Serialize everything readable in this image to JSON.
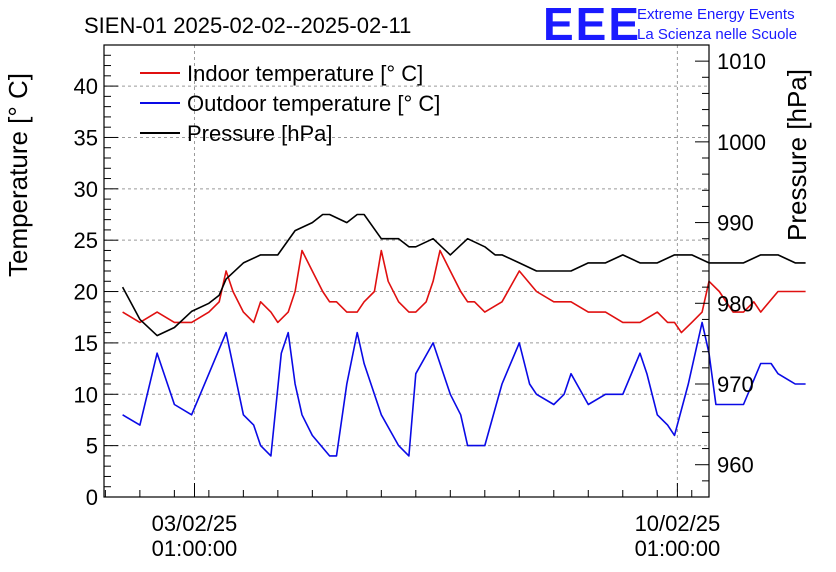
{
  "logo": {
    "mark": "EEE",
    "line1": "Extreme Energy Events",
    "line2": "La Scienza nelle Scuole",
    "color": "#1a1aff"
  },
  "chart_data": {
    "type": "line",
    "title": "SIEN-01 2025-02-02--2025-02-11",
    "ylabel_left": "Temperature [° C]",
    "ylabel_right": "Pressure [hPa]",
    "xlabel": "",
    "ylim_left": [
      0,
      44
    ],
    "ylim_right": [
      956,
      1012
    ],
    "xlim_days": [
      1.73,
      10.5
    ],
    "grid": true,
    "legend_position": "top-left",
    "yticks_left": [
      0,
      5,
      10,
      15,
      20,
      25,
      30,
      35,
      40
    ],
    "yticks_right": [
      960,
      970,
      980,
      990,
      1000,
      1010
    ],
    "xticks": [
      {
        "day": 3.0417,
        "date": "03/02/25",
        "time": "01:00:00"
      },
      {
        "day": 10.0417,
        "date": "10/02/25",
        "time": "01:00:00"
      }
    ],
    "series": [
      {
        "name": "Indoor temperature [° C]",
        "axis": "left",
        "color": "#e01010",
        "x": [
          2.0,
          2.25,
          2.5,
          2.75,
          3.0,
          3.25,
          3.4,
          3.5,
          3.6,
          3.75,
          3.9,
          4.0,
          4.15,
          4.25,
          4.4,
          4.5,
          4.6,
          4.75,
          4.9,
          5.0,
          5.1,
          5.25,
          5.4,
          5.5,
          5.65,
          5.75,
          5.85,
          6.0,
          6.15,
          6.25,
          6.4,
          6.5,
          6.6,
          6.75,
          6.9,
          7.0,
          7.1,
          7.25,
          7.5,
          7.75,
          8.0,
          8.25,
          8.5,
          8.75,
          9.0,
          9.25,
          9.5,
          9.75,
          9.9,
          10.0,
          10.1,
          10.25,
          10.4,
          10.5,
          10.65,
          10.75,
          10.85,
          11.0,
          11.15,
          11.25,
          11.5,
          11.75,
          11.9
        ],
        "values": [
          18,
          17,
          18,
          17,
          17,
          18,
          19,
          22,
          20,
          18,
          17,
          19,
          18,
          17,
          18,
          20,
          24,
          22,
          20,
          19,
          19,
          18,
          18,
          19,
          20,
          24,
          21,
          19,
          18,
          18,
          19,
          21,
          24,
          22,
          20,
          19,
          19,
          18,
          19,
          22,
          20,
          19,
          19,
          18,
          18,
          17,
          17,
          18,
          17,
          17,
          16,
          17,
          18,
          21,
          20,
          19,
          18,
          18,
          19,
          18,
          20,
          20,
          20
        ]
      },
      {
        "name": "Outdoor temperature [° C]",
        "axis": "left",
        "color": "#0a0ae6",
        "x": [
          2.0,
          2.25,
          2.5,
          2.75,
          3.0,
          3.25,
          3.5,
          3.75,
          3.9,
          4.0,
          4.15,
          4.3,
          4.4,
          4.5,
          4.6,
          4.75,
          5.0,
          5.1,
          5.25,
          5.4,
          5.5,
          5.75,
          6.0,
          6.15,
          6.25,
          6.5,
          6.75,
          6.9,
          7.0,
          7.25,
          7.5,
          7.75,
          7.9,
          8.0,
          8.25,
          8.4,
          8.5,
          8.75,
          9.0,
          9.25,
          9.5,
          9.6,
          9.75,
          9.9,
          10.0,
          10.2,
          10.4,
          10.5,
          10.6,
          10.75,
          11.0,
          11.25,
          11.4,
          11.5,
          11.75,
          11.9
        ],
        "values": [
          8,
          7,
          14,
          9,
          8,
          12,
          16,
          8,
          7,
          5,
          4,
          14,
          16,
          11,
          8,
          6,
          4,
          4,
          11,
          16,
          13,
          8,
          5,
          4,
          12,
          15,
          10,
          8,
          5,
          5,
          11,
          15,
          11,
          10,
          9,
          10,
          12,
          9,
          10,
          10,
          14,
          12,
          8,
          7,
          6,
          11,
          17,
          14,
          9,
          9,
          9,
          13,
          13,
          12,
          11,
          11
        ]
      },
      {
        "name": "Pressure [hPa]",
        "axis": "right",
        "color": "#000000",
        "x": [
          2.0,
          2.25,
          2.5,
          2.75,
          3.0,
          3.25,
          3.4,
          3.5,
          3.75,
          4.0,
          4.25,
          4.5,
          4.75,
          4.9,
          5.0,
          5.25,
          5.4,
          5.5,
          5.75,
          6.0,
          6.15,
          6.25,
          6.5,
          6.75,
          7.0,
          7.25,
          7.4,
          7.5,
          7.75,
          8.0,
          8.25,
          8.5,
          8.75,
          9.0,
          9.25,
          9.5,
          9.75,
          10.0,
          10.25,
          10.5,
          10.75,
          11.0,
          11.25,
          11.5,
          11.75,
          11.9
        ],
        "values": [
          982,
          978,
          976,
          977,
          979,
          980,
          981,
          983,
          985,
          986,
          986,
          989,
          990,
          991,
          991,
          990,
          991,
          991,
          988,
          988,
          987,
          987,
          988,
          986,
          988,
          987,
          986,
          986,
          985,
          984,
          984,
          984,
          985,
          985,
          986,
          985,
          985,
          986,
          986,
          985,
          985,
          985,
          986,
          986,
          985,
          985
        ]
      }
    ]
  }
}
